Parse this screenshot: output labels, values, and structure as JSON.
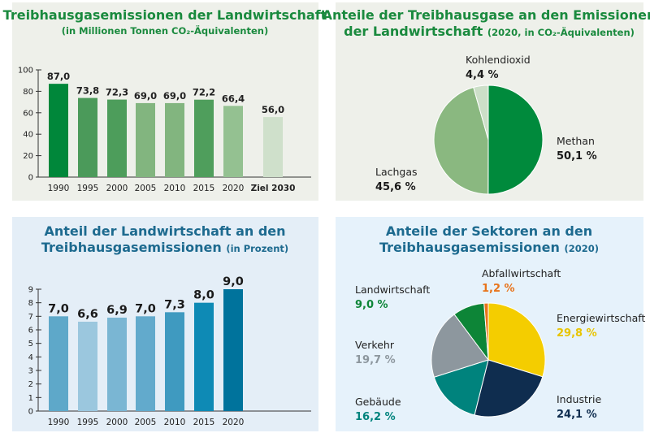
{
  "chart_data": [
    {
      "type": "bar",
      "title": "Treibhausgasemissionen der Landwirtschaft",
      "subtitle": "(in Millionen Tonnen CO₂-Äquivalenten)",
      "categories": [
        "1990",
        "1995",
        "2000",
        "2005",
        "2010",
        "2015",
        "2020",
        "Ziel 2030"
      ],
      "values": [
        87.0,
        73.8,
        72.3,
        69.0,
        69.0,
        72.2,
        66.4,
        56.0
      ],
      "labels": [
        "87,0",
        "73,8",
        "72,3",
        "69,0",
        "69,0",
        "72,2",
        "66,4",
        "56,0"
      ],
      "colors": [
        "#00873a",
        "#4b9a5a",
        "#4d9d5b",
        "#82b57f",
        "#82b57f",
        "#4f9e5c",
        "#94c191",
        "#cfe0cb"
      ],
      "yticks": [
        "0",
        "20",
        "40",
        "60",
        "80",
        "100"
      ],
      "ylim": [
        0,
        100
      ],
      "grid": false
    },
    {
      "type": "pie",
      "title_line1": "Anteile der Treibhausgase an den Emissionen",
      "title_line2": "der Landwirtschaft",
      "subtitle": "(2020, in CO₂-Äquivalenten)",
      "slices": [
        {
          "name": "Methan",
          "value": 50.1,
          "label": "50,1 %",
          "color": "#008a3c",
          "text_color": "#1a1a1a"
        },
        {
          "name": "Lachgas",
          "value": 45.6,
          "label": "45,6 %",
          "color": "#8ab880",
          "text_color": "#1a1a1a"
        },
        {
          "name": "Kohlendioxid",
          "value": 4.4,
          "label": "4,4 %",
          "color": "#ccdfc8",
          "text_color": "#1a1a1a"
        }
      ]
    },
    {
      "type": "bar",
      "title_line1": "Anteil der Landwirtschaft an den",
      "title_line2": "Treibhausgasemissionen",
      "subtitle": "(in Prozent)",
      "categories": [
        "1990",
        "1995",
        "2000",
        "2005",
        "2010",
        "2015",
        "2020"
      ],
      "values": [
        7.0,
        6.6,
        6.9,
        7.0,
        7.3,
        8.0,
        9.0
      ],
      "labels": [
        "7,0",
        "6,6",
        "6,9",
        "7,0",
        "7,3",
        "8,0",
        "9,0"
      ],
      "colors": [
        "#5ea8c9",
        "#9bc7de",
        "#7ab6d3",
        "#62aacc",
        "#3f9ac0",
        "#0e8ab5",
        "#00739c"
      ],
      "yticks": [
        "0",
        "1",
        "2",
        "3",
        "4",
        "5",
        "6",
        "7",
        "8",
        "9"
      ],
      "ylim": [
        0,
        9
      ],
      "grid": false
    },
    {
      "type": "pie",
      "title_line1": "Anteile der Sektoren an den",
      "title_line2": "Treibhausgasemissionen",
      "subtitle": "(2020)",
      "slices": [
        {
          "name": "Energiewirtschaft",
          "value": 29.8,
          "label": "29,8 %",
          "color": "#f4cd00",
          "text_color": "#e8c400"
        },
        {
          "name": "Industrie",
          "value": 24.1,
          "label": "24,1 %",
          "color": "#0f2d4f",
          "text_color": "#0f2d4f"
        },
        {
          "name": "Gebäude",
          "value": 16.2,
          "label": "16,2 %",
          "color": "#00837d",
          "text_color": "#00837d"
        },
        {
          "name": "Verkehr",
          "value": 19.7,
          "label": "19,7 %",
          "color": "#8d979e",
          "text_color": "#8d979e"
        },
        {
          "name": "Landwirtschaft",
          "value": 9.0,
          "label": "9,0 %",
          "color": "#0d8537",
          "text_color": "#0d8537"
        },
        {
          "name": "Abfallwirtschaft",
          "value": 1.2,
          "label": "1,2 %",
          "color": "#e8731a",
          "text_color": "#e8731a"
        }
      ]
    }
  ],
  "colors": {
    "green_title": "#1a8a3e",
    "blue_title": "#1d6a8f",
    "panel_green": "#eef0ea",
    "panel_blue": "#e4eef7",
    "panel_blue2": "#e6f2fb"
  }
}
